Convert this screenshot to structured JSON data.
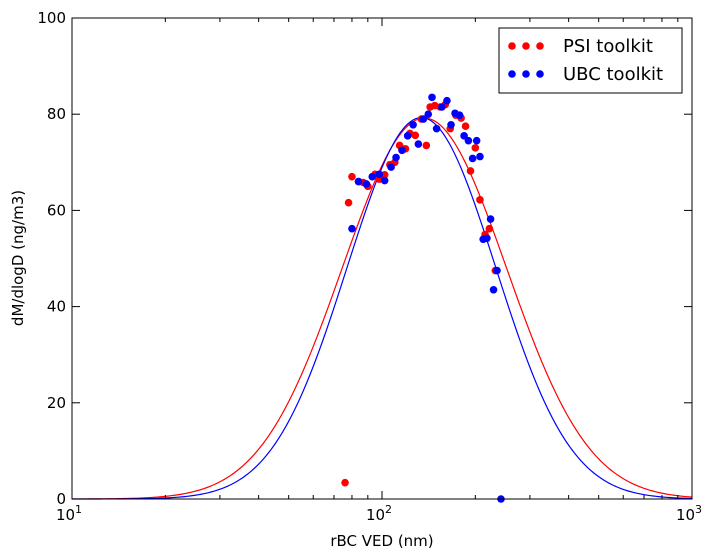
{
  "chart_data": {
    "type": "scatter",
    "xlabel": "rBC VED (nm)",
    "ylabel": "dM/dlogD (ng/m3)",
    "xscale": "log",
    "xlim": [
      10,
      1000
    ],
    "ylim": [
      0,
      100
    ],
    "x_ticks": [
      {
        "value": 10,
        "base": "10",
        "exp": "1"
      },
      {
        "value": 100,
        "base": "10",
        "exp": "2"
      },
      {
        "value": 1000,
        "base": "10",
        "exp": "3"
      }
    ],
    "y_ticks": [
      "0",
      "20",
      "40",
      "60",
      "80",
      "100"
    ],
    "legend_position": "top-right",
    "series": [
      {
        "name": "PSI toolkit",
        "color": "#ff0000",
        "points": [
          [
            76,
            3.4
          ],
          [
            78,
            61.6
          ],
          [
            80,
            67
          ],
          [
            84,
            66
          ],
          [
            87,
            65.8
          ],
          [
            90,
            65
          ],
          [
            95,
            67.5
          ],
          [
            98,
            66.5
          ],
          [
            102,
            67.4
          ],
          [
            106,
            69.5
          ],
          [
            110,
            70
          ],
          [
            114,
            73.5
          ],
          [
            119,
            72.8
          ],
          [
            123,
            76
          ],
          [
            128,
            75.6
          ],
          [
            134,
            79
          ],
          [
            139,
            73.5
          ],
          [
            143,
            81.5
          ],
          [
            148,
            81.8
          ],
          [
            154,
            81.5
          ],
          [
            160,
            82
          ],
          [
            166,
            77
          ],
          [
            173,
            79.8
          ],
          [
            180,
            79.2
          ],
          [
            186,
            77.5
          ],
          [
            193,
            68.2
          ],
          [
            200,
            73
          ],
          [
            207,
            62.2
          ],
          [
            215,
            55
          ],
          [
            222,
            56.2
          ],
          [
            232,
            47.5
          ]
        ],
        "fit": {
          "mode": 137,
          "peak": 79.2,
          "sigma_log10": 0.265
        }
      },
      {
        "name": "UBC toolkit",
        "color": "#0000ff",
        "points": [
          [
            80,
            56.2
          ],
          [
            84,
            66
          ],
          [
            89,
            65.5
          ],
          [
            93,
            67
          ],
          [
            98,
            67.5
          ],
          [
            102,
            66.2
          ],
          [
            107,
            69
          ],
          [
            111,
            71
          ],
          [
            116,
            72.5
          ],
          [
            121,
            75.5
          ],
          [
            126,
            77.8
          ],
          [
            131,
            73.8
          ],
          [
            136,
            79
          ],
          [
            141,
            80
          ],
          [
            145,
            83.5
          ],
          [
            150,
            77
          ],
          [
            156,
            81.5
          ],
          [
            162,
            82.8
          ],
          [
            167,
            77.8
          ],
          [
            172,
            80.2
          ],
          [
            178,
            79.8
          ],
          [
            184,
            75.5
          ],
          [
            190,
            74.5
          ],
          [
            196,
            70.8
          ],
          [
            202,
            74.5
          ],
          [
            207,
            71.2
          ],
          [
            212,
            54
          ],
          [
            218,
            54.2
          ],
          [
            224,
            58.2
          ],
          [
            229,
            43.5
          ],
          [
            235,
            47.5
          ],
          [
            242,
            0
          ]
        ],
        "fit": {
          "mode": 134,
          "peak": 79.3,
          "sigma_log10": 0.24
        }
      }
    ]
  }
}
